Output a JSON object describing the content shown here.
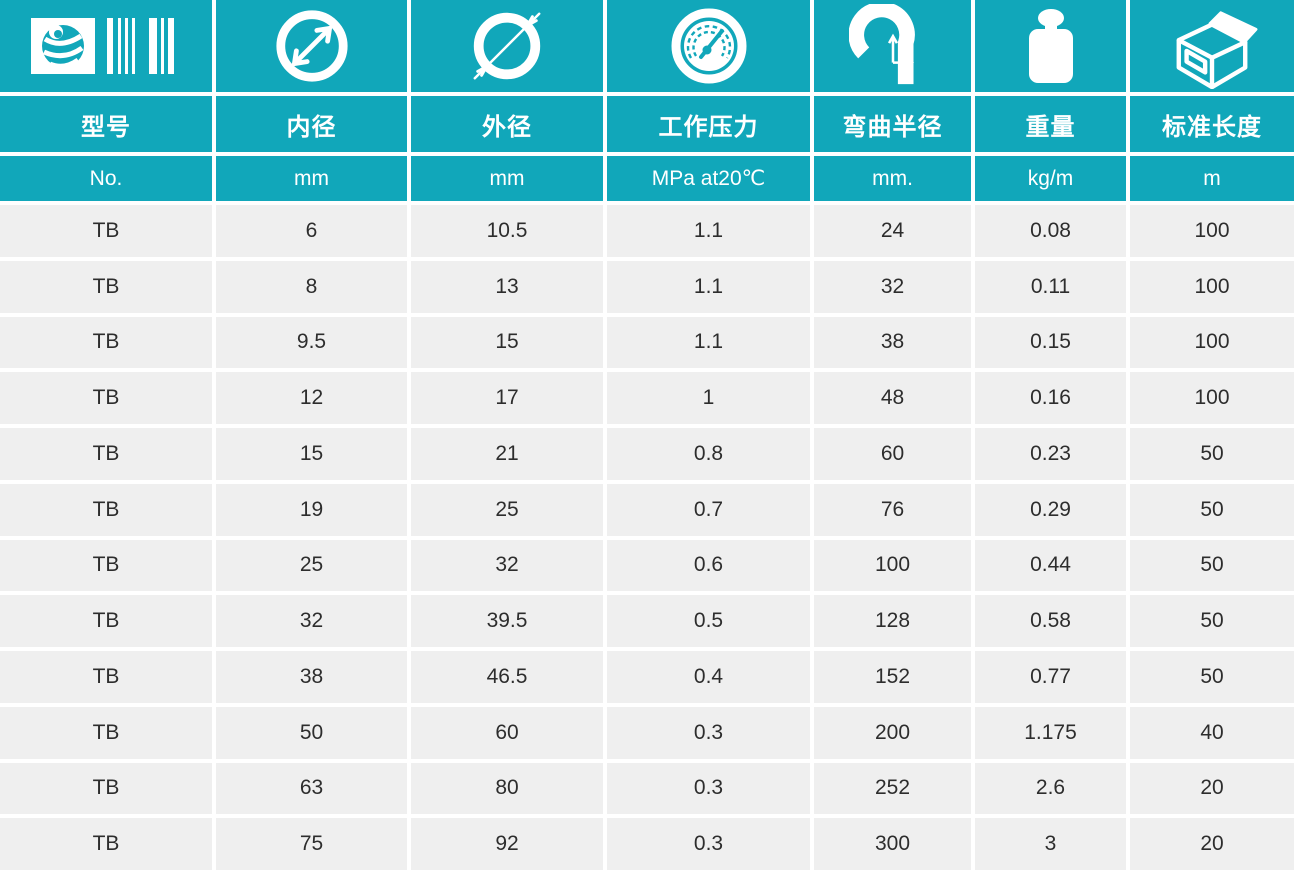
{
  "colors": {
    "teal": "#11a7ba",
    "row_bg": "#efefef",
    "text": "#2d2d2d",
    "gutter": "#ffffff"
  },
  "table": {
    "columns": [
      {
        "id": "model",
        "icon": "logo-barcode-icon",
        "title": "型号",
        "unit": "No."
      },
      {
        "id": "inner",
        "icon": "inner-diameter-icon",
        "title": "内径",
        "unit": "mm"
      },
      {
        "id": "outer",
        "icon": "outer-diameter-icon",
        "title": "外径",
        "unit": "mm"
      },
      {
        "id": "pressure",
        "icon": "pressure-gauge-icon",
        "title": "工作压力",
        "unit": "MPa at20℃"
      },
      {
        "id": "bend",
        "icon": "bend-radius-icon",
        "title": "弯曲半径",
        "unit": "mm."
      },
      {
        "id": "weight",
        "icon": "weight-icon",
        "title": "重量",
        "unit": "kg/m"
      },
      {
        "id": "length",
        "icon": "box-icon",
        "title": "标准长度",
        "unit": "m"
      }
    ],
    "rows": [
      [
        "TB",
        "6",
        "10.5",
        "1.1",
        "24",
        "0.08",
        "100"
      ],
      [
        "TB",
        "8",
        "13",
        "1.1",
        "32",
        "0.11",
        "100"
      ],
      [
        "TB",
        "9.5",
        "15",
        "1.1",
        "38",
        "0.15",
        "100"
      ],
      [
        "TB",
        "12",
        "17",
        "1",
        "48",
        "0.16",
        "100"
      ],
      [
        "TB",
        "15",
        "21",
        "0.8",
        "60",
        "0.23",
        "50"
      ],
      [
        "TB",
        "19",
        "25",
        "0.7",
        "76",
        "0.29",
        "50"
      ],
      [
        "TB",
        "25",
        "32",
        "0.6",
        "100",
        "0.44",
        "50"
      ],
      [
        "TB",
        "32",
        "39.5",
        "0.5",
        "128",
        "0.58",
        "50"
      ],
      [
        "TB",
        "38",
        "46.5",
        "0.4",
        "152",
        "0.77",
        "50"
      ],
      [
        "TB",
        "50",
        "60",
        "0.3",
        "200",
        "1.175",
        "40"
      ],
      [
        "TB",
        "63",
        "80",
        "0.3",
        "252",
        "2.6",
        "20"
      ],
      [
        "TB",
        "75",
        "92",
        "0.3",
        "300",
        "3",
        "20"
      ]
    ]
  }
}
